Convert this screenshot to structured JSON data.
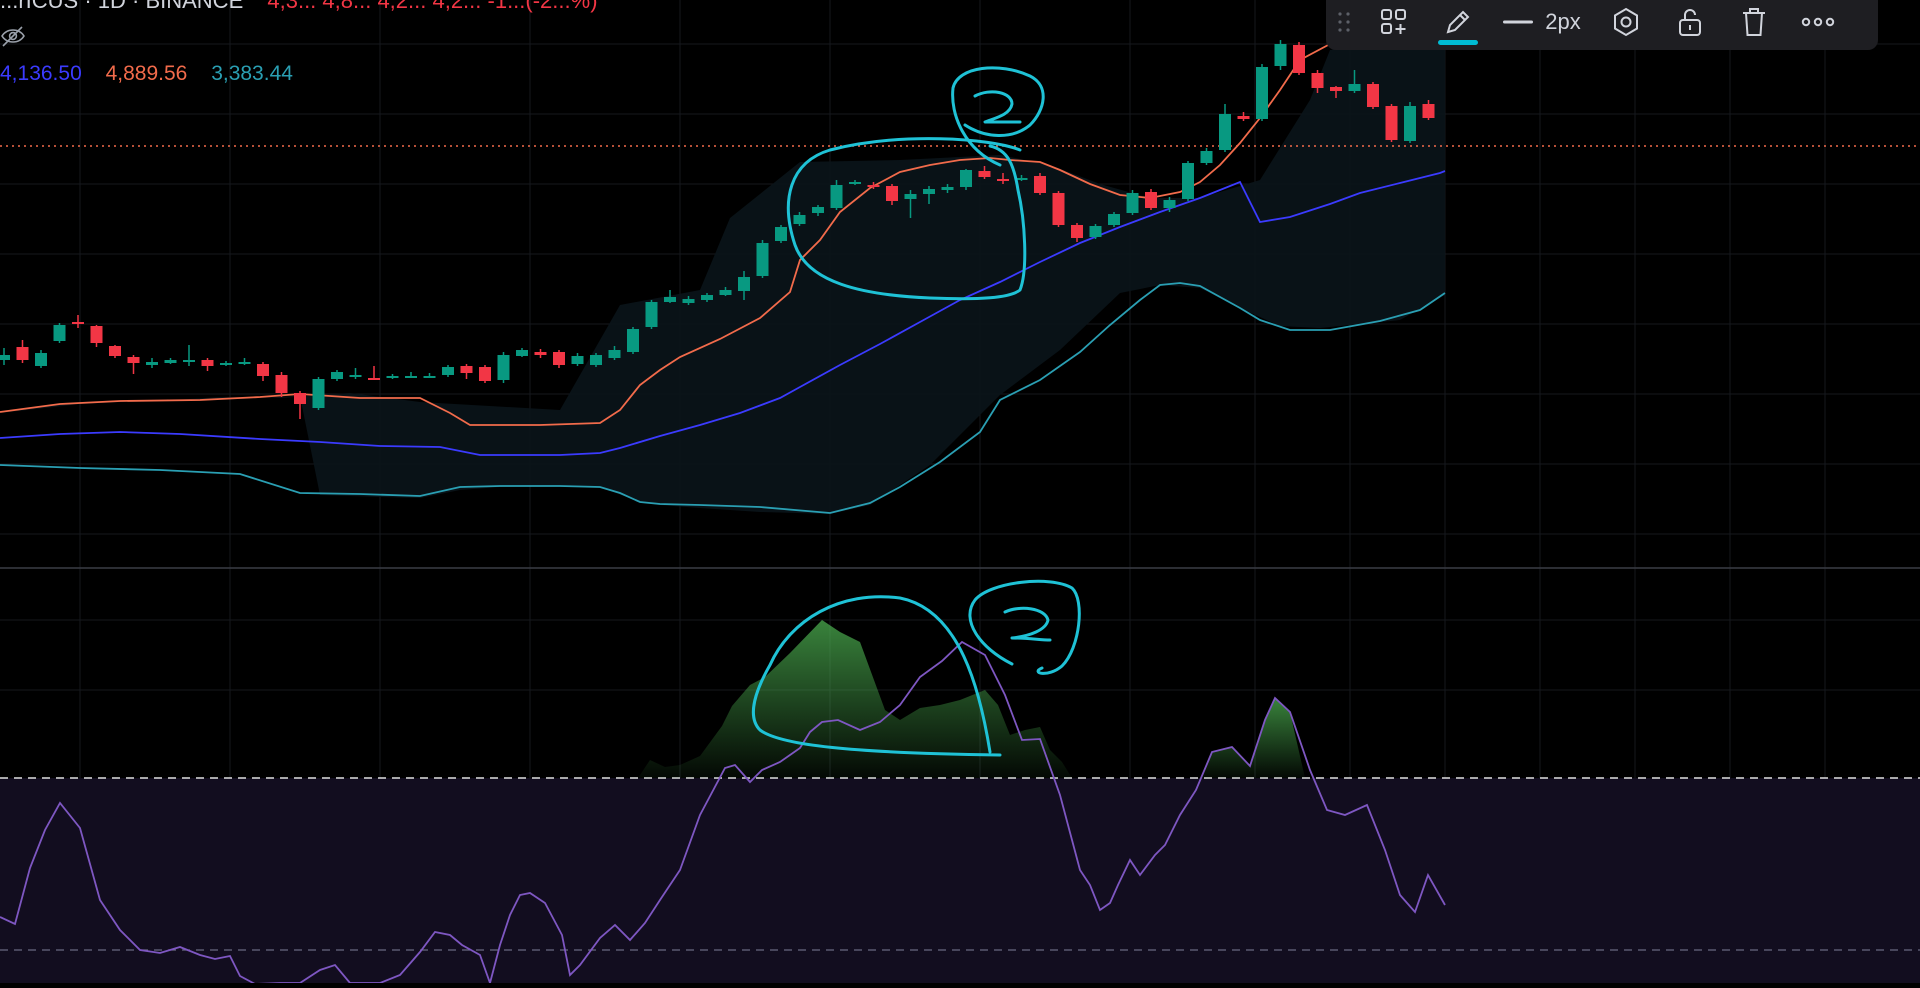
{
  "header": {
    "symbol": "...rICUS · 1D · BINANCE",
    "ohlc": "4,3...  4,8...  4,2...  4,2...  -1...(-2...%)"
  },
  "legend": {
    "basis_value": "4,136.50",
    "upper_value": "4,889.56",
    "lower_value": "3,383.44",
    "basis_color": "#3b3bff",
    "upper_color": "#f26b4b",
    "lower_color": "#2a9fb3"
  },
  "toolbar": {
    "line_width_label": "2px",
    "icons": [
      "drag-handle-icon",
      "add-template-icon",
      "pencil-icon",
      "line-width-icon",
      "settings-hexagon-icon",
      "unlock-icon",
      "trash-icon",
      "more-icon"
    ],
    "active_color": "#00bcd4"
  },
  "colors": {
    "background": "#000000",
    "candle_up": "#089981",
    "candle_down": "#f23645",
    "price_line": "#f26b4b",
    "rsi_line": "#7e57c2",
    "drawing": "#1fc2d6",
    "bb_fill": "#0f1c24",
    "rsi_band_fill": "#120d1f"
  },
  "chart_data": {
    "type": "candlestick",
    "title": "",
    "indicator": "Bollinger Bands",
    "candles": [
      [
        0,
        355,
        360,
        348,
        365,
        "u"
      ],
      [
        1,
        360,
        347,
        340,
        363,
        "d"
      ],
      [
        2,
        366,
        353,
        350,
        368,
        "u"
      ],
      [
        3,
        341,
        325,
        323,
        343,
        "u"
      ],
      [
        4,
        322,
        324,
        315,
        328,
        "d"
      ],
      [
        5,
        326,
        343,
        325,
        347,
        "d"
      ],
      [
        6,
        346,
        356,
        345,
        358,
        "d"
      ],
      [
        7,
        357,
        363,
        355,
        374,
        "d"
      ],
      [
        8,
        362,
        365,
        358,
        368,
        "u"
      ],
      [
        9,
        360,
        363,
        358,
        364,
        "u"
      ],
      [
        10,
        360,
        360,
        345,
        366,
        "u"
      ],
      [
        11,
        360,
        366,
        358,
        371,
        "d"
      ],
      [
        12,
        363,
        364,
        361,
        366,
        "u"
      ],
      [
        13,
        362,
        362,
        358,
        365,
        "u"
      ],
      [
        14,
        364,
        376,
        362,
        381,
        "d"
      ],
      [
        15,
        375,
        393,
        372,
        397,
        "d"
      ],
      [
        16,
        393,
        404,
        391,
        419,
        "d"
      ],
      [
        17,
        408,
        379,
        377,
        410,
        "u"
      ],
      [
        18,
        379,
        372,
        370,
        381,
        "u"
      ],
      [
        19,
        375,
        376,
        368,
        379,
        "u"
      ],
      [
        20,
        378,
        378,
        366,
        379,
        "d"
      ],
      [
        21,
        378,
        376,
        374,
        379,
        "u"
      ],
      [
        22,
        376,
        376,
        372,
        378,
        "u"
      ],
      [
        23,
        377,
        376,
        373,
        378,
        "u"
      ],
      [
        24,
        375,
        367,
        365,
        377,
        "u"
      ],
      [
        25,
        366,
        373,
        364,
        379,
        "d"
      ],
      [
        26,
        367,
        381,
        365,
        383,
        "d"
      ],
      [
        27,
        380,
        355,
        352,
        383,
        "u"
      ],
      [
        28,
        356,
        350,
        348,
        357,
        "u"
      ],
      [
        29,
        355,
        352,
        349,
        358,
        "d"
      ],
      [
        30,
        352,
        365,
        350,
        368,
        "d"
      ],
      [
        31,
        364,
        356,
        353,
        366,
        "u"
      ],
      [
        32,
        365,
        355,
        353,
        367,
        "u"
      ],
      [
        33,
        358,
        350,
        346,
        360,
        "u"
      ],
      [
        34,
        352,
        329,
        327,
        354,
        "u"
      ],
      [
        35,
        327,
        302,
        300,
        329,
        "u"
      ],
      [
        36,
        302,
        297,
        290,
        303,
        "u"
      ],
      [
        37,
        303,
        299,
        296,
        305,
        "u"
      ],
      [
        38,
        300,
        295,
        293,
        302,
        "u"
      ],
      [
        39,
        295,
        290,
        287,
        296,
        "u"
      ],
      [
        40,
        291,
        277,
        271,
        300,
        "u"
      ],
      [
        41,
        276,
        243,
        240,
        278,
        "u"
      ],
      [
        42,
        241,
        227,
        225,
        243,
        "u"
      ],
      [
        43,
        224,
        215,
        212,
        226,
        "u"
      ],
      [
        44,
        213,
        207,
        205,
        216,
        "u"
      ],
      [
        45,
        208,
        185,
        180,
        210,
        "u"
      ],
      [
        46,
        182,
        183,
        180,
        185,
        "u"
      ],
      [
        47,
        185,
        185,
        182,
        189,
        "d"
      ],
      [
        48,
        186,
        201,
        184,
        205,
        "d"
      ],
      [
        49,
        199,
        194,
        190,
        218,
        "u"
      ],
      [
        50,
        194,
        189,
        186,
        204,
        "u"
      ],
      [
        51,
        190,
        187,
        184,
        193,
        "u"
      ],
      [
        52,
        187,
        170,
        169,
        190,
        "u"
      ],
      [
        53,
        171,
        177,
        166,
        179,
        "d"
      ],
      [
        54,
        179,
        179,
        173,
        184,
        "d"
      ],
      [
        55,
        180,
        178,
        175,
        181,
        "u"
      ],
      [
        56,
        176,
        193,
        173,
        195,
        "d"
      ],
      [
        57,
        193,
        225,
        191,
        227,
        "d"
      ],
      [
        58,
        225,
        238,
        223,
        242,
        "d"
      ],
      [
        59,
        237,
        226,
        224,
        239,
        "u"
      ],
      [
        60,
        225,
        214,
        212,
        227,
        "u"
      ],
      [
        61,
        213,
        193,
        190,
        215,
        "u"
      ],
      [
        62,
        192,
        208,
        189,
        210,
        "d"
      ],
      [
        63,
        208,
        200,
        197,
        212,
        "u"
      ],
      [
        64,
        199,
        163,
        161,
        201,
        "u"
      ],
      [
        65,
        163,
        151,
        148,
        165,
        "u"
      ],
      [
        66,
        150,
        114,
        104,
        152,
        "u"
      ],
      [
        67,
        116,
        119,
        112,
        121,
        "d"
      ],
      [
        68,
        119,
        67,
        64,
        121,
        "u"
      ],
      [
        69,
        66,
        44,
        40,
        70,
        "u"
      ],
      [
        70,
        45,
        73,
        42,
        75,
        "d"
      ],
      [
        71,
        73,
        88,
        70,
        93,
        "d"
      ],
      [
        72,
        87,
        91,
        86,
        98,
        "d"
      ],
      [
        73,
        91,
        84,
        70,
        93,
        "u"
      ],
      [
        74,
        84,
        107,
        82,
        109,
        "d"
      ],
      [
        75,
        106,
        140,
        104,
        142,
        "d"
      ],
      [
        76,
        141,
        106,
        102,
        143,
        "u"
      ],
      [
        77,
        104,
        118,
        100,
        120,
        "d"
      ]
    ]
  }
}
